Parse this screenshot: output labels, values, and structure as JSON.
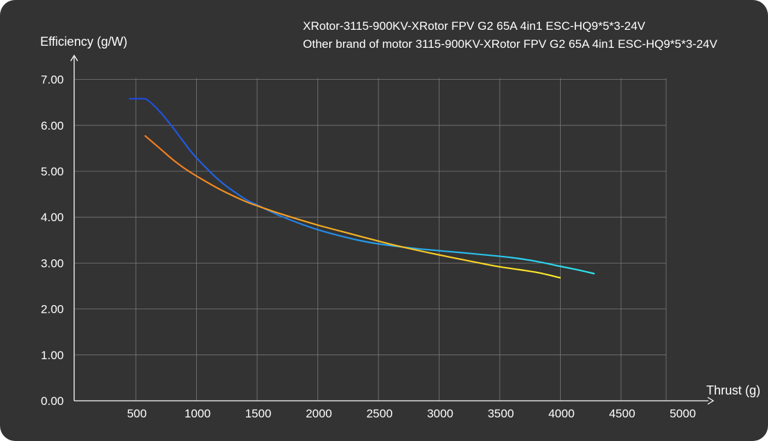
{
  "chart_data": {
    "type": "line",
    "ylabel": "Efficiency (g/W)",
    "xlabel": "Thrust (g)",
    "xlim": [
      0,
      5000
    ],
    "ylim": [
      0,
      7
    ],
    "x_ticks": [
      500,
      1000,
      1500,
      2000,
      2500,
      3000,
      3500,
      4000,
      4500,
      5000
    ],
    "x_tick_labels": [
      "500",
      "1000",
      "1500",
      "2000",
      "2500",
      "3000",
      "3500",
      "4000",
      "4500",
      "5000"
    ],
    "y_ticks": [
      0,
      1,
      2,
      3,
      4,
      5,
      6,
      7
    ],
    "y_tick_labels": [
      "0.00",
      "1.00",
      "2.00",
      "3.00",
      "4.00",
      "5.00",
      "6.00",
      "7.00"
    ],
    "grid": true,
    "legend_position": "top-right",
    "series": [
      {
        "name": "XRotor-3115-900KV-XRotor FPV G2 65A 4in1 ESC-HQ9*5*3-24V",
        "gradient": [
          "#1f47e0",
          "#2ee6ee"
        ],
        "x": [
          450,
          500,
          550,
          600,
          700,
          800,
          900,
          1000,
          1200,
          1400,
          1500,
          1700,
          2000,
          2300,
          2500,
          2800,
          3000,
          3300,
          3600,
          3800,
          4000,
          4150,
          4280
        ],
        "y": [
          6.58,
          6.58,
          6.58,
          6.55,
          6.3,
          5.98,
          5.63,
          5.3,
          4.78,
          4.4,
          4.27,
          4.02,
          3.73,
          3.52,
          3.42,
          3.32,
          3.27,
          3.2,
          3.12,
          3.04,
          2.93,
          2.85,
          2.77
        ]
      },
      {
        "name": "Other brand of motor 3115-900KV-XRotor FPV G2 65A 4in1 ESC-HQ9*5*3-24V",
        "gradient": [
          "#f07820",
          "#fbee2a"
        ],
        "x": [
          580,
          700,
          800,
          900,
          1000,
          1200,
          1400,
          1500,
          1700,
          2000,
          2300,
          2500,
          2700,
          3000,
          3300,
          3500,
          3800,
          4000
        ],
        "y": [
          5.77,
          5.5,
          5.27,
          5.07,
          4.9,
          4.6,
          4.35,
          4.25,
          4.07,
          3.83,
          3.62,
          3.48,
          3.35,
          3.18,
          3.02,
          2.92,
          2.8,
          2.68
        ]
      }
    ]
  }
}
